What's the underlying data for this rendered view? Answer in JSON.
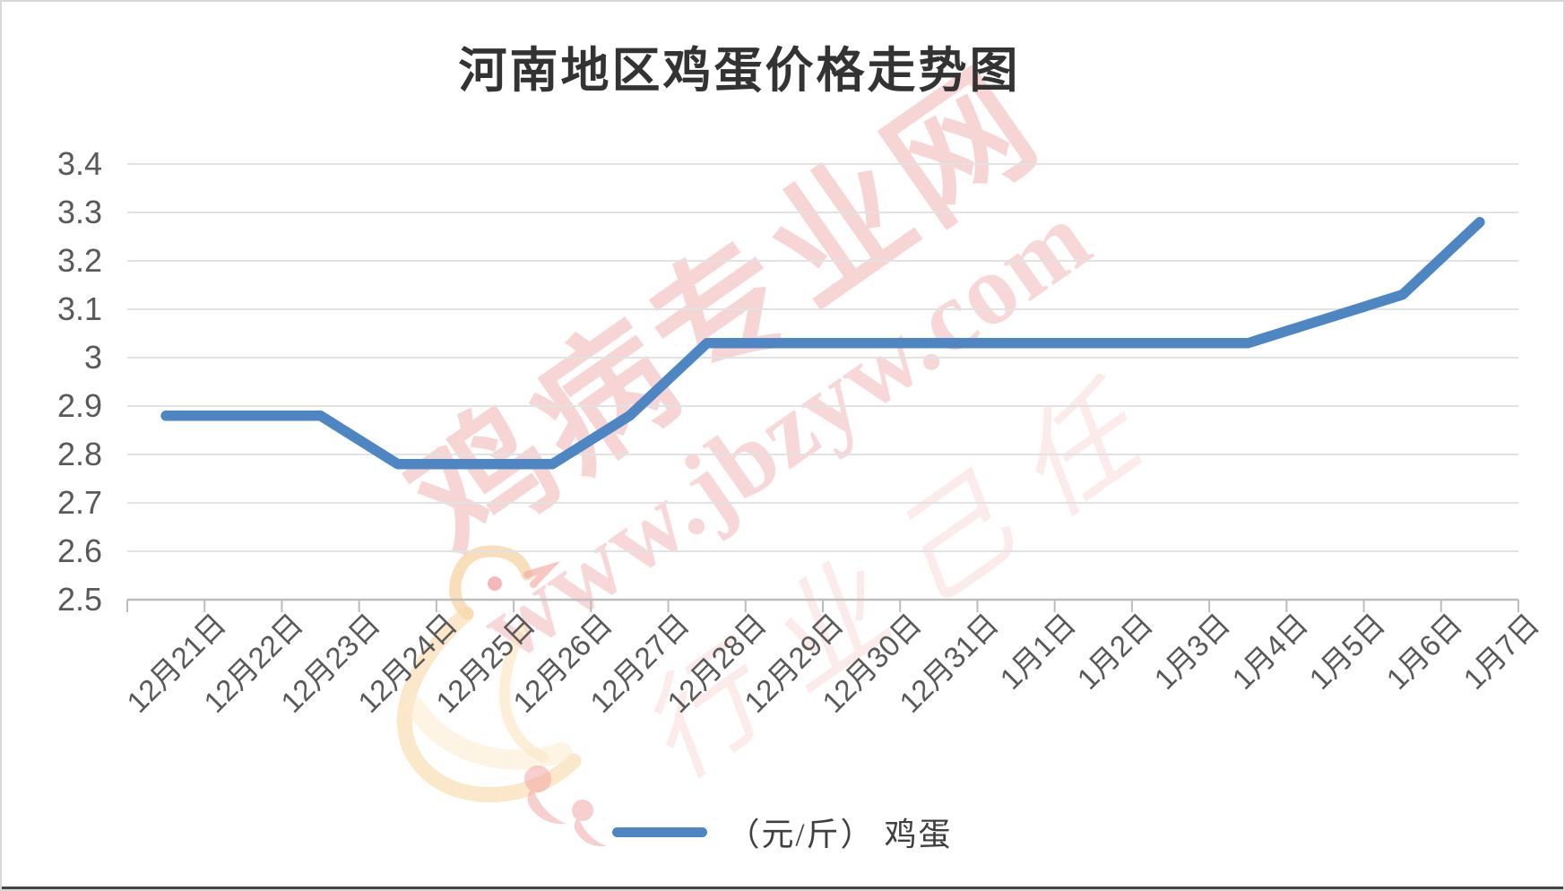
{
  "chart_data": {
    "type": "line",
    "title": "河南地区鸡蛋价格走势图",
    "categories": [
      "12月21日",
      "12月22日",
      "12月23日",
      "12月24日",
      "12月25日",
      "12月26日",
      "12月27日",
      "12月28日",
      "12月29日",
      "12月30日",
      "12月31日",
      "1月1日",
      "1月2日",
      "1月3日",
      "1月4日",
      "1月5日",
      "1月6日",
      "1月7日"
    ],
    "series": [
      {
        "name": "（元/斤） 鸡蛋",
        "color": "#4E86C4",
        "values": [
          2.88,
          2.88,
          2.88,
          2.78,
          2.78,
          2.78,
          2.88,
          3.03,
          3.03,
          3.03,
          3.03,
          3.03,
          3.03,
          3.03,
          3.03,
          3.08,
          3.13,
          3.28
        ]
      }
    ],
    "ylim": [
      2.5,
      3.4
    ],
    "ytick_labels": [
      "2.5",
      "2.6",
      "2.7",
      "2.8",
      "2.9",
      "3",
      "3.1",
      "3.2",
      "3.3",
      "3.4"
    ],
    "xlabel": "",
    "ylabel": "",
    "grid": true,
    "legend_position": "bottom",
    "gridline_color": "#e2e2e2",
    "axis_color": "#bdbdbd",
    "label_color": "#595959"
  },
  "watermark": {
    "brand_text": "鸡病专业网",
    "url_text": "www.jbzyw.com",
    "script_text": "行业己任",
    "color": "#DF5858"
  }
}
